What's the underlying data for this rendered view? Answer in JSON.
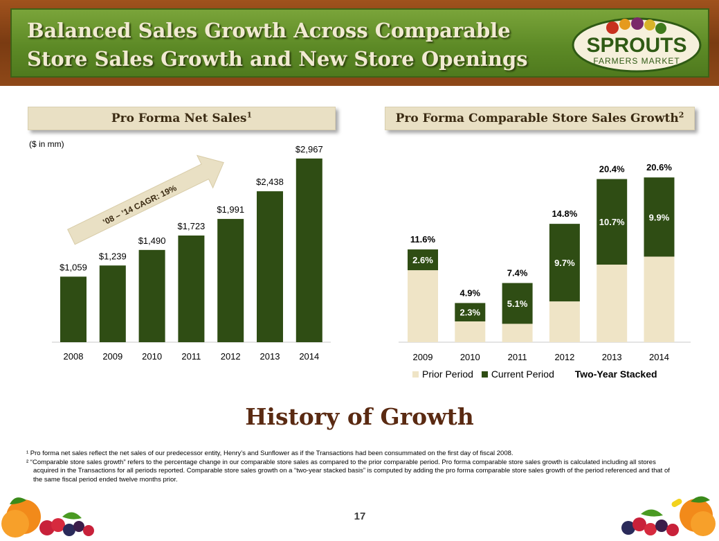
{
  "header": {
    "title": "Balanced Sales Growth Across Comparable Store Sales Growth and New Store Openings",
    "logo_text_main": "SPROUTS",
    "logo_text_sub": "FARMERS MARKET"
  },
  "left_panel": {
    "title": "Pro Forma Net Sales",
    "title_sup": "1",
    "units": "($ in mm)"
  },
  "right_panel": {
    "title": "Pro Forma Comparable Store Sales Growth",
    "title_sup": "2"
  },
  "history_title": "History of Growth",
  "footnotes": [
    "¹ Pro forma net sales reflect the net sales of our predecessor entity, Henry’s and Sunflower as if the Transactions had been consummated on the first day of fiscal 2008.",
    "² “Comparable store sales growth” refers to the percentage change in our comparable store sales as compared to the prior comparable period. Pro forma comparable store sales growth is calculated including all stores acquired in the  Transactions for all periods reported. Comparable store sales growth on a “two-year stacked basis” is computed by adding the pro forma comparable store sales growth of the period referenced and that of the same fiscal period ended twelve months prior."
  ],
  "page_number": "17",
  "colors": {
    "dark_green": "#2f4d14",
    "beige": "#efe4c6",
    "header_green": "#5d8a26",
    "wood": "#8e4818"
  },
  "chart_data": [
    {
      "type": "bar",
      "title": "Pro Forma Net Sales",
      "units": "($ in mm)",
      "categories": [
        "2008",
        "2009",
        "2010",
        "2011",
        "2012",
        "2013",
        "2014"
      ],
      "values": [
        1059,
        1239,
        1490,
        1723,
        1991,
        2438,
        2967
      ],
      "data_labels": [
        "$1,059",
        "$1,239",
        "$1,490",
        "$1,723",
        "$1,991",
        "$2,438",
        "$2,967"
      ],
      "ylim": [
        0,
        3200
      ],
      "annotation": "’08 – ’14 CAGR:  19%",
      "grid": false
    },
    {
      "type": "bar",
      "stacked": true,
      "title": "Pro Forma Comparable Store Sales Growth",
      "categories": [
        "2009",
        "2010",
        "2011",
        "2012",
        "2013",
        "2014"
      ],
      "series": [
        {
          "name": "Prior Period",
          "values": [
            9.0,
            2.6,
            2.3,
            5.1,
            9.7,
            10.7
          ]
        },
        {
          "name": "Current Period",
          "values": [
            2.6,
            2.3,
            5.1,
            9.7,
            10.7,
            9.9
          ]
        }
      ],
      "segment_labels": [
        "2.6%",
        "2.3%",
        "5.1%",
        "9.7%",
        "10.7%",
        "9.9%"
      ],
      "totals": [
        "11.6%",
        "4.9%",
        "7.4%",
        "14.8%",
        "20.4%",
        "20.6%"
      ],
      "legend_total_label": "Two-Year Stacked",
      "ylim": [
        0,
        22
      ],
      "legend_position": "bottom",
      "grid": false
    }
  ]
}
